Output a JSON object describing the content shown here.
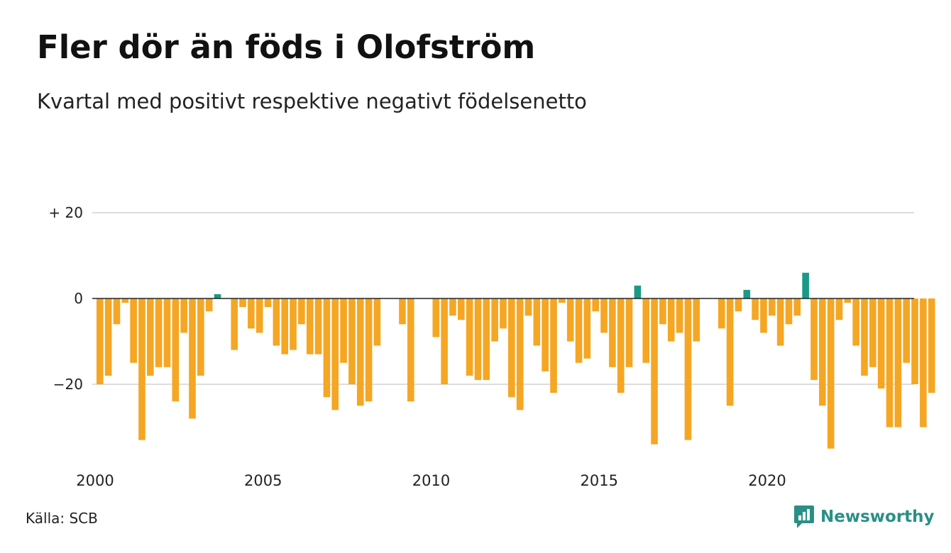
{
  "header": {
    "title": "Fler dör än föds i Olofström",
    "subtitle": "Kvartal med positivt respektive negativt födelsenetto"
  },
  "footer": {
    "source": "Källa: SCB",
    "brand": "Newsworthy",
    "brand_icon": "newsworthy-logo-icon"
  },
  "colors": {
    "negative": "#f5a623",
    "positive": "#1a9986",
    "grid": "#dddddd",
    "zero_line": "#222222",
    "brand": "#2a8f85"
  },
  "chart_data": {
    "type": "bar",
    "x_start": 2000,
    "x_end": 2024.5,
    "x_ticks": [
      2000,
      2005,
      2010,
      2015,
      2020
    ],
    "y_ticks": [
      {
        "value": 20,
        "label": "+ 20"
      },
      {
        "value": 0,
        "label": "0"
      },
      {
        "value": -20,
        "label": "−20"
      }
    ],
    "ylim": [
      -37,
      24
    ],
    "grid": true,
    "bar_spacing_quarters": 0.25,
    "values": [
      -20,
      -18,
      -6,
      -1,
      -15,
      -33,
      -18,
      -16,
      -16,
      -24,
      -8,
      -28,
      -18,
      -3,
      1,
      0,
      -12,
      -2,
      -7,
      -8,
      -2,
      -11,
      -13,
      -12,
      -6,
      -13,
      -13,
      -23,
      -26,
      -15,
      -20,
      -25,
      -24,
      -11,
      0,
      0,
      -6,
      -24,
      0,
      0,
      -9,
      -20,
      -4,
      -5,
      -18,
      -19,
      -19,
      -10,
      -7,
      -23,
      -26,
      -4,
      -11,
      -17,
      -22,
      -1,
      -10,
      -15,
      -14,
      -3,
      -8,
      -16,
      -22,
      -16,
      3,
      -15,
      -34,
      -6,
      -10,
      -8,
      -33,
      -10,
      0,
      0,
      -7,
      -25,
      -3,
      2,
      -5,
      -8,
      -4,
      -11,
      -6,
      -4,
      6,
      -19,
      -25,
      -35,
      -5,
      -1,
      -11,
      -18,
      -16,
      -21,
      -30,
      -30,
      -15,
      -20,
      -30,
      -22
    ]
  }
}
